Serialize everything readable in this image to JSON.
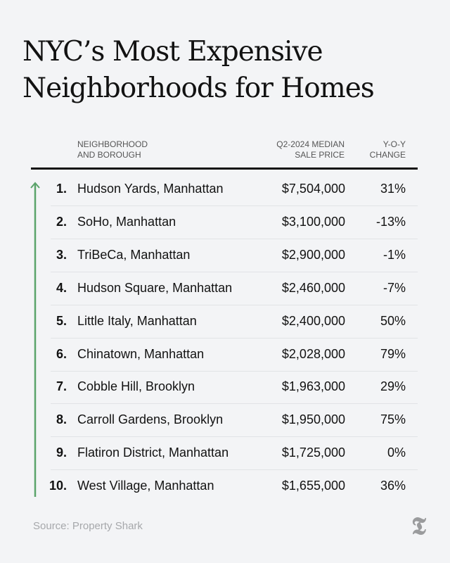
{
  "title": "NYC’s Most Expensive Neighborhoods for Homes",
  "colors": {
    "arrow": "#5aa36a",
    "background": "#f3f4f6",
    "text": "#121212"
  },
  "chart_data": {
    "type": "table",
    "title": "NYC’s Most Expensive Neighborhoods for Homes",
    "columns": [
      "NEIGHBORHOOD AND BOROUGH",
      "Q2-2024 MEDIAN SALE PRICE",
      "Y-O-Y CHANGE"
    ],
    "headers": {
      "name_1": "Neighborhood",
      "name_2": "and Borough",
      "price_1": "Q2-2024 Median",
      "price_2": "Sale Price",
      "change_1": "Y-O-Y",
      "change_2": "Change"
    },
    "rows": [
      {
        "rank": "1.",
        "name": "Hudson Yards, Manhattan",
        "price": "$7,504,000",
        "change": "31%"
      },
      {
        "rank": "2.",
        "name": "SoHo, Manhattan",
        "price": "$3,100,000",
        "change": "-13%"
      },
      {
        "rank": "3.",
        "name": "TriBeCa, Manhattan",
        "price": "$2,900,000",
        "change": "-1%"
      },
      {
        "rank": "4.",
        "name": "Hudson Square, Manhattan",
        "price": "$2,460,000",
        "change": "-7%"
      },
      {
        "rank": "5.",
        "name": "Little Italy, Manhattan",
        "price": "$2,400,000",
        "change": "50%"
      },
      {
        "rank": "6.",
        "name": "Chinatown, Manhattan",
        "price": "$2,028,000",
        "change": "79%"
      },
      {
        "rank": "7.",
        "name": "Cobble Hill, Brooklyn",
        "price": "$1,963,000",
        "change": "29%"
      },
      {
        "rank": "8.",
        "name": "Carroll Gardens, Brooklyn",
        "price": "$1,950,000",
        "change": "75%"
      },
      {
        "rank": "9.",
        "name": "Flatiron District, Manhattan",
        "price": "$1,725,000",
        "change": "0%"
      },
      {
        "rank": "10.",
        "name": "West Village, Manhattan",
        "price": "$1,655,000",
        "change": "36%"
      }
    ]
  },
  "source": "Source: Property Shark",
  "logo": "T"
}
